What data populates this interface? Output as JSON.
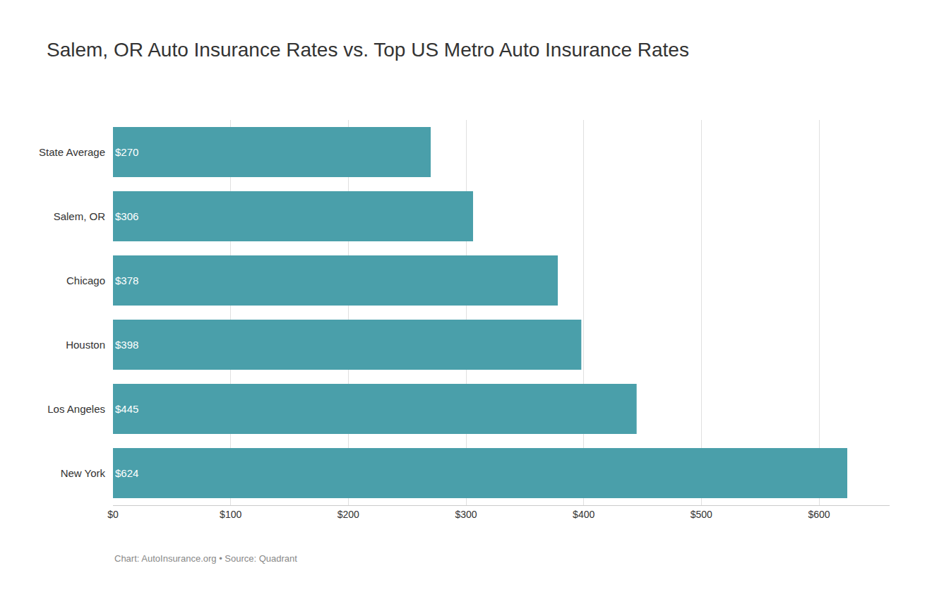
{
  "chart_data": {
    "type": "bar",
    "orientation": "horizontal",
    "title": "Salem, OR Auto Insurance Rates vs. Top US Metro Auto Insurance Rates",
    "categories": [
      "State Average",
      "Salem, OR",
      "Chicago",
      "Houston",
      "Los Angeles",
      "New York"
    ],
    "values": [
      270,
      306,
      378,
      398,
      445,
      624
    ],
    "value_labels": [
      "$270",
      "$306",
      "$378",
      "$398",
      "$445",
      "$624"
    ],
    "data_labels": true,
    "color": "#4a9faa",
    "xlim": [
      0,
      660
    ],
    "xticks": [
      {
        "value": 0,
        "label": "$0"
      },
      {
        "value": 100,
        "label": "$100"
      },
      {
        "value": 200,
        "label": "$200"
      },
      {
        "value": 300,
        "label": "$300"
      },
      {
        "value": 400,
        "label": "$400"
      },
      {
        "value": 500,
        "label": "$500"
      },
      {
        "value": 600,
        "label": "$600"
      }
    ],
    "grid": true,
    "annotations": [
      "Chart: AutoInsurance.org • Source: Quadrant"
    ]
  }
}
